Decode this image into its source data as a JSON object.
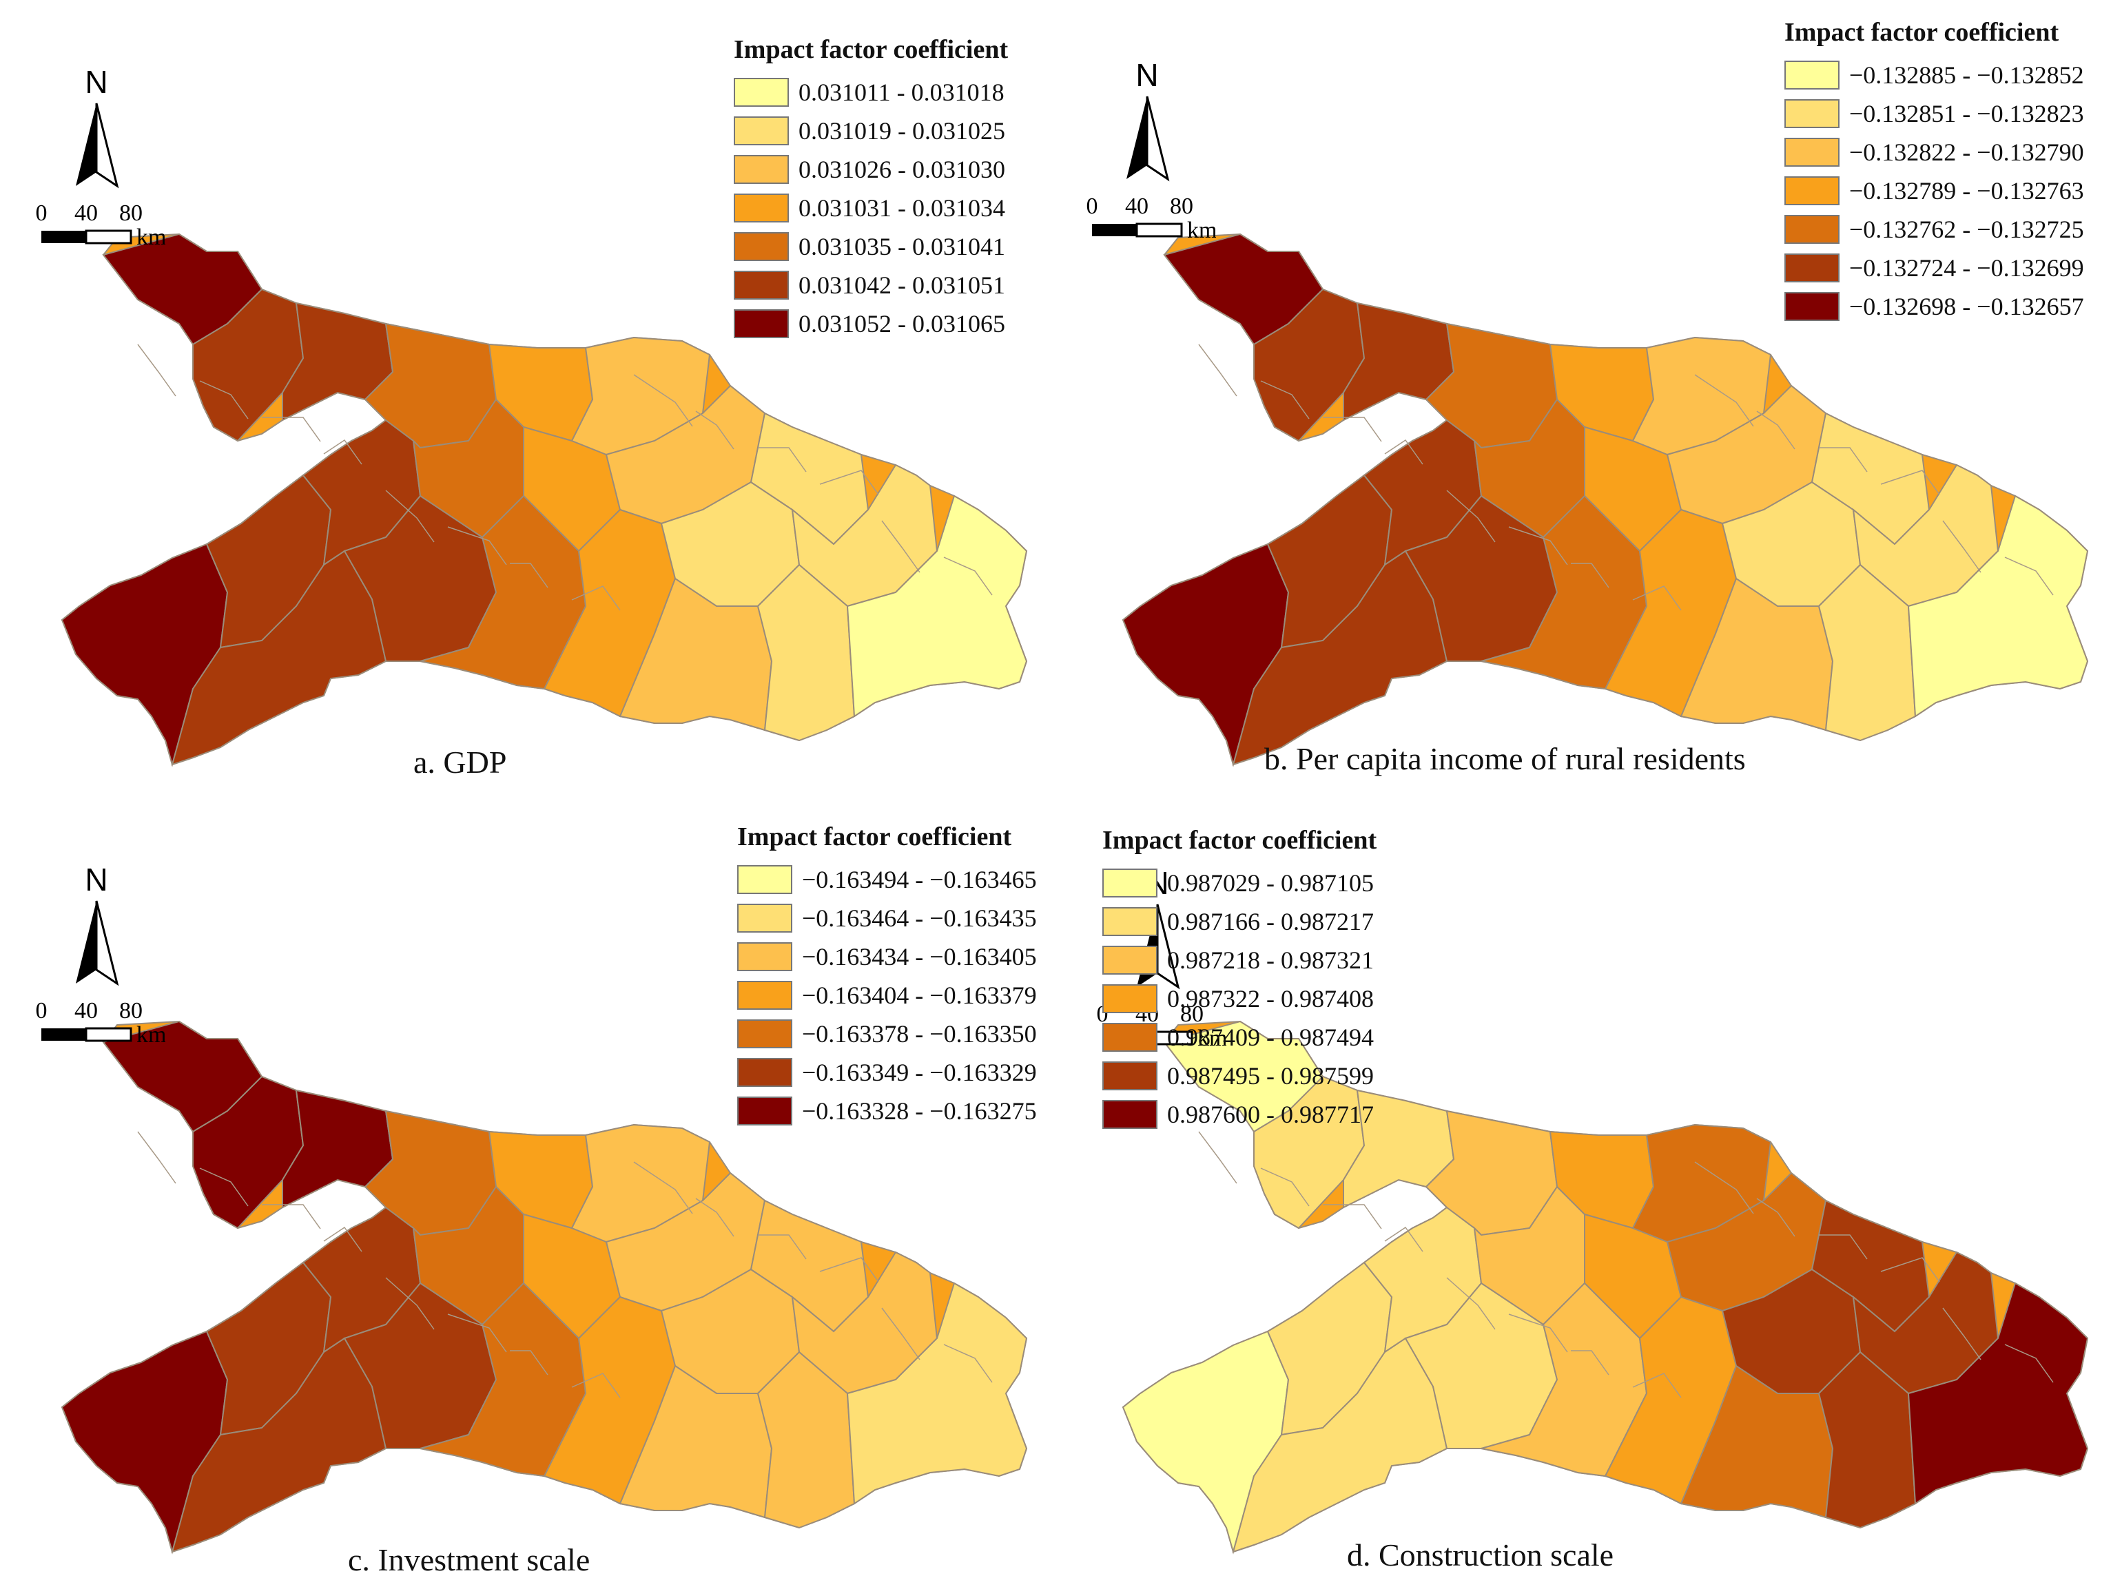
{
  "legend_title": "Impact factor coefficient",
  "north_label": "N",
  "scale": {
    "ticks": [
      "0",
      "40",
      "80"
    ],
    "unit": "km"
  },
  "colors": [
    "#ffff99",
    "#fedf74",
    "#fdc04d",
    "#f9a11b",
    "#d9700f",
    "#a83a0a",
    "#800000"
  ],
  "panels": [
    {
      "id": "a",
      "caption": "a. GDP",
      "classes": [
        "0.031011 - 0.031018",
        "0.031019 - 0.031025",
        "0.031026 - 0.031030",
        "0.031031 - 0.031034",
        "0.031035 - 0.031041",
        "0.031042 - 0.031051",
        "0.031052 - 0.031065"
      ],
      "gradient": "west-high"
    },
    {
      "id": "b",
      "caption": "b. Per capita income of rural residents",
      "classes": [
        "−0.132885 - −0.132852",
        "−0.132851 - −0.132823",
        "−0.132822 - −0.132790",
        "−0.132789 - −0.132763",
        "−0.132762 - −0.132725",
        "−0.132724 - −0.132699",
        "−0.132698 - −0.132657"
      ],
      "gradient": "west-high"
    },
    {
      "id": "c",
      "caption": "c. Investment scale",
      "classes": [
        "−0.163494 - −0.163465",
        "−0.163464 - −0.163435",
        "−0.163434 - −0.163405",
        "−0.163404 - −0.163379",
        "−0.163378 - −0.163350",
        "−0.163349 - −0.163329",
        "−0.163328 - −0.163275"
      ],
      "gradient": "northwest-high"
    },
    {
      "id": "d",
      "caption": "d. Construction scale",
      "classes": [
        "0.987029 - 0.987105",
        "0.987166 - 0.987217",
        "0.987218 - 0.987321",
        "0.987322 - 0.987408",
        "0.987409 - 0.987494",
        "0.987495 - 0.987599",
        "0.987600 - 0.987717"
      ],
      "gradient": "east-high"
    }
  ]
}
